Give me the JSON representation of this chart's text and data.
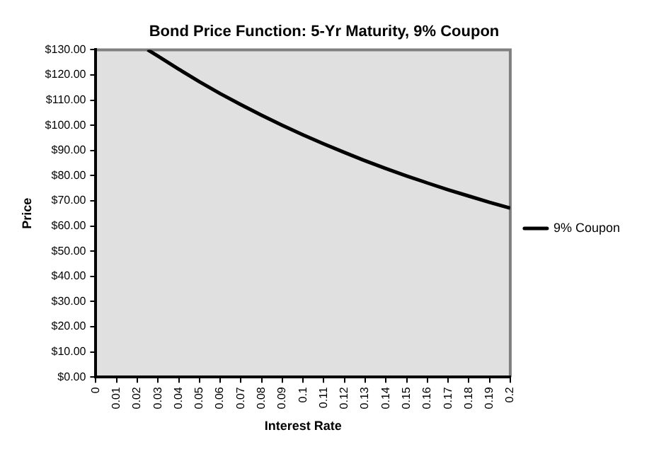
{
  "chart_data": {
    "type": "line",
    "title": "Bond Price Function: 5-Yr Maturity, 9% Coupon",
    "xlabel": "Interest Rate",
    "ylabel": "Price",
    "x": [
      0.025,
      0.03,
      0.04,
      0.05,
      0.06,
      0.07,
      0.08,
      0.09,
      0.1,
      0.11,
      0.12,
      0.13,
      0.14,
      0.15,
      0.16,
      0.17,
      0.18,
      0.19,
      0.2
    ],
    "series": [
      {
        "name": "9% Coupon",
        "color": "#000000",
        "values": [
          130,
          127.5,
          122.3,
          117.3,
          112.6,
          108.2,
          104,
          100,
          96.2,
          92.6,
          89.2,
          85.9,
          82.8,
          79.9,
          77.1,
          74.4,
          71.9,
          69.4,
          67.1
        ]
      }
    ],
    "xlim": [
      0,
      0.2
    ],
    "xticks": [
      0,
      0.01,
      0.02,
      0.03,
      0.04,
      0.05,
      0.06,
      0.07,
      0.08,
      0.09,
      0.1,
      0.11,
      0.12,
      0.13,
      0.14,
      0.15,
      0.16,
      0.17,
      0.18,
      0.19,
      0.2
    ],
    "ylim": [
      0,
      130
    ],
    "yticks": [
      {
        "value": 0,
        "label": "$0.00"
      },
      {
        "value": 10,
        "label": "$10.00"
      },
      {
        "value": 20,
        "label": "$20.00"
      },
      {
        "value": 30,
        "label": "$30.00"
      },
      {
        "value": 40,
        "label": "$40.00"
      },
      {
        "value": 50,
        "label": "$50.00"
      },
      {
        "value": 60,
        "label": "$60.00"
      },
      {
        "value": 70,
        "label": "$70.00"
      },
      {
        "value": 80,
        "label": "$80.00"
      },
      {
        "value": 90,
        "label": "$90.00"
      },
      {
        "value": 100,
        "label": "$100.00"
      },
      {
        "value": 110,
        "label": "$110.00"
      },
      {
        "value": 120,
        "label": "$120.00"
      },
      {
        "value": 130,
        "label": "$130.00"
      }
    ],
    "grid": false,
    "legend": "right",
    "marker": "none",
    "line_style": "solid"
  }
}
